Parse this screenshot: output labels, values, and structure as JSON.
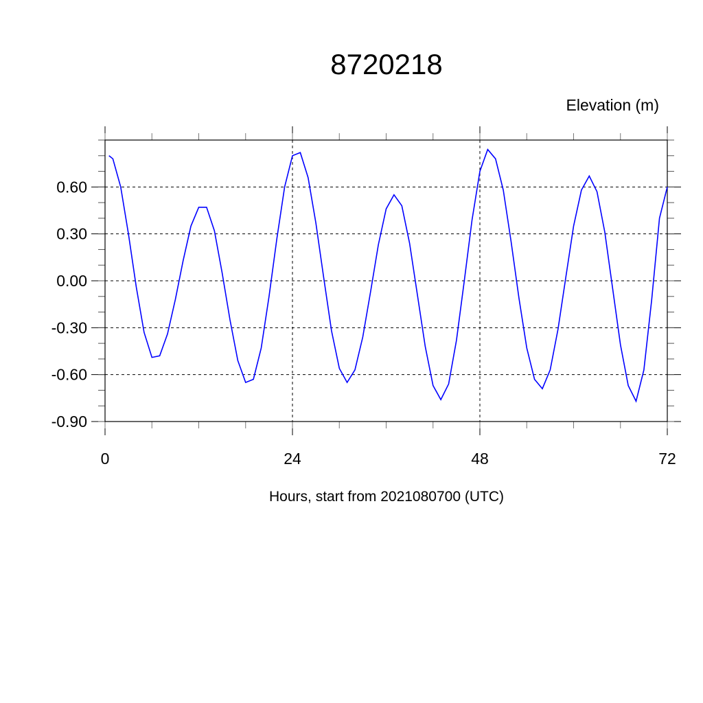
{
  "chart_data": {
    "type": "line",
    "title": "8720218",
    "ylabel": "Elevation (m)",
    "xlabel": "Hours, start from 2021080700 (UTC)",
    "xlim": [
      0,
      72
    ],
    "ylim": [
      -0.9,
      0.9
    ],
    "x_ticks": [
      0,
      24,
      48,
      72
    ],
    "x_tick_labels": [
      "0",
      "24",
      "48",
      "72"
    ],
    "x_minor_step": 6,
    "y_ticks": [
      -0.9,
      -0.6,
      -0.3,
      0.0,
      0.3,
      0.6
    ],
    "y_tick_labels": [
      "-0.90",
      "-0.60",
      "-0.30",
      "0.00",
      "0.30",
      "0.60"
    ],
    "y_minor_step": 0.1,
    "grid": "dashed at major ticks",
    "line_color": "#0000ff",
    "series": [
      {
        "x": [
          0.5,
          1,
          2,
          3,
          4,
          5,
          6,
          7,
          8,
          9,
          10,
          11,
          12,
          13,
          14,
          15,
          16,
          17,
          18,
          19,
          20,
          21,
          22,
          23,
          24,
          25,
          26,
          27,
          28,
          29,
          30,
          31,
          32,
          33,
          34,
          35,
          36,
          37,
          38,
          39,
          40,
          41,
          42,
          43,
          44,
          45,
          46,
          47,
          48,
          49,
          50,
          51,
          52,
          53,
          54,
          55,
          56,
          57,
          58,
          59,
          60,
          61,
          62,
          63,
          64,
          65,
          66,
          67,
          68,
          69,
          70,
          71,
          72
        ],
        "values": [
          0.8,
          0.78,
          0.6,
          0.3,
          -0.04,
          -0.33,
          -0.49,
          -0.48,
          -0.34,
          -0.12,
          0.13,
          0.35,
          0.47,
          0.47,
          0.32,
          0.05,
          -0.25,
          -0.51,
          -0.65,
          -0.63,
          -0.43,
          -0.1,
          0.27,
          0.6,
          0.8,
          0.82,
          0.66,
          0.37,
          0.02,
          -0.32,
          -0.56,
          -0.65,
          -0.57,
          -0.36,
          -0.07,
          0.23,
          0.46,
          0.55,
          0.48,
          0.24,
          -0.09,
          -0.42,
          -0.67,
          -0.76,
          -0.66,
          -0.38,
          0.0,
          0.39,
          0.7,
          0.84,
          0.78,
          0.58,
          0.25,
          -0.11,
          -0.43,
          -0.63,
          -0.69,
          -0.57,
          -0.31,
          0.02,
          0.35,
          0.58,
          0.67,
          0.57,
          0.31,
          -0.05,
          -0.41,
          -0.67,
          -0.77,
          -0.57,
          -0.12,
          0.4,
          0.6
        ]
      }
    ]
  }
}
